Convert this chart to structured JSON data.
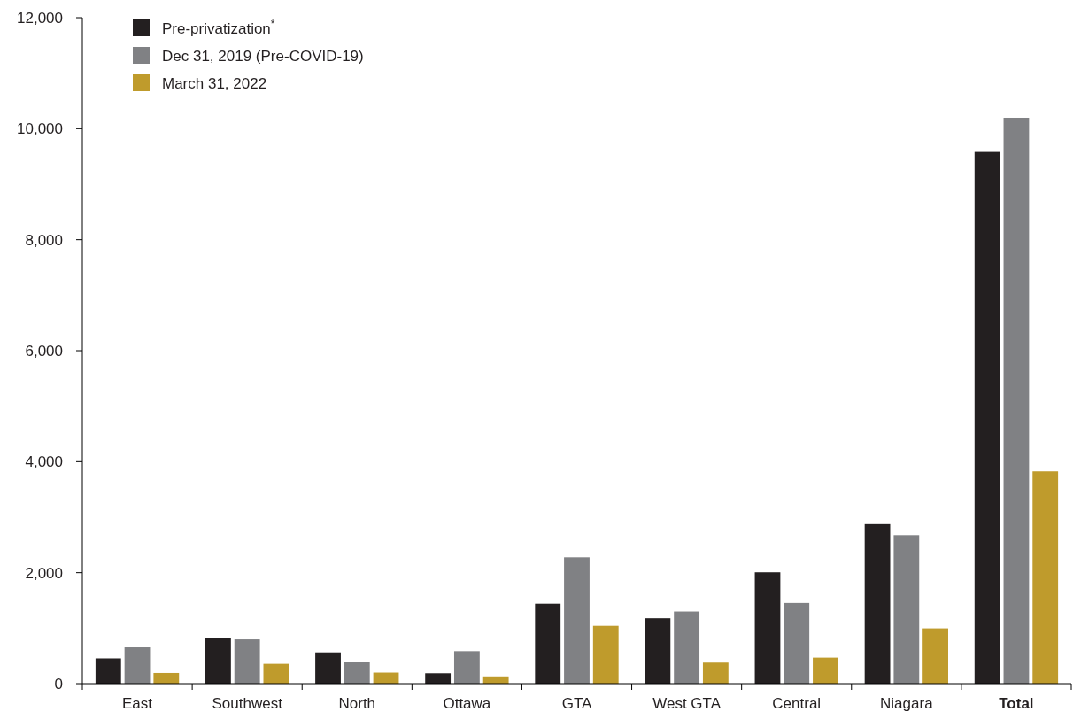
{
  "chart_data": {
    "type": "bar",
    "categories": [
      "East",
      "Southwest",
      "North",
      "Ottawa",
      "GTA",
      "West GTA",
      "Central",
      "Niagara",
      "Total"
    ],
    "series": [
      {
        "name": "Pre-privatization$^{*}$",
        "color": "#231f20",
        "values": [
          455,
          819,
          563,
          187,
          1441,
          1178,
          2007,
          2875,
          9581
        ]
      },
      {
        "name": "Dec 31, 2019 (Pre-COVID-19)",
        "color": "#808184",
        "values": [
          654,
          797,
          398,
          585,
          2277,
          1300,
          1454,
          2676,
          10197
        ]
      },
      {
        "name": "March 31, 2022",
        "color": "#bf9b2c",
        "values": [
          192,
          357,
          199,
          131,
          1042,
          379,
          469,
          996,
          3826
        ]
      }
    ],
    "ylim": [
      0,
      12000
    ],
    "yticks": [
      0,
      {
        "value": 2000,
        "label": "2,000"
      },
      {
        "value": 4000,
        "label": "4,000"
      },
      {
        "value": 6000,
        "label": "6,000"
      },
      {
        "value": 8000,
        "label": "8,000"
      },
      {
        "value": 10000,
        "label": "10,000"
      },
      {
        "value": 12000,
        "label": "12,000"
      }
    ],
    "legend": "top left"
  }
}
